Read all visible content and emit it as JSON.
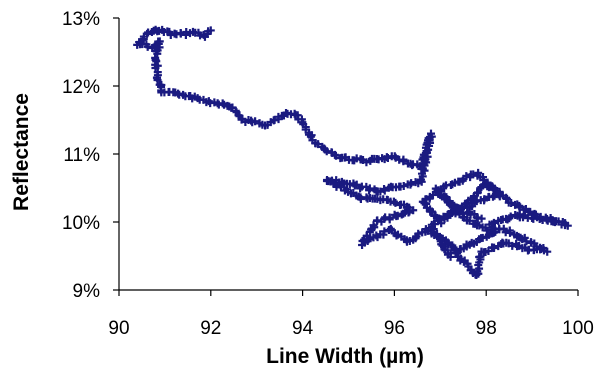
{
  "chart_data": {
    "type": "scatter",
    "xlabel": "Line Width (µm)",
    "ylabel": "Reflectance",
    "xlim": [
      90,
      100
    ],
    "ylim": [
      9,
      13
    ],
    "x_ticks": [
      "90",
      "92",
      "94",
      "96",
      "98",
      "100"
    ],
    "y_ticks": [
      "9%",
      "10%",
      "11%",
      "12%",
      "13%"
    ],
    "grid": false,
    "legend": "none",
    "marker": "plus",
    "color": "#1a1a80",
    "path_points": [
      [
        92.0,
        12.82
      ],
      [
        91.9,
        12.74
      ],
      [
        91.6,
        12.78
      ],
      [
        91.2,
        12.76
      ],
      [
        90.9,
        12.83
      ],
      [
        90.7,
        12.8
      ],
      [
        90.4,
        12.62
      ],
      [
        90.7,
        12.58
      ],
      [
        90.9,
        12.65
      ],
      [
        90.8,
        12.4
      ],
      [
        90.85,
        12.1
      ],
      [
        90.95,
        11.9
      ],
      [
        91.4,
        11.88
      ],
      [
        91.9,
        11.78
      ],
      [
        92.4,
        11.72
      ],
      [
        92.7,
        11.5
      ],
      [
        93.2,
        11.43
      ],
      [
        93.7,
        11.6
      ],
      [
        93.9,
        11.55
      ],
      [
        94.3,
        11.15
      ],
      [
        94.8,
        10.95
      ],
      [
        95.4,
        10.9
      ],
      [
        96.0,
        10.95
      ],
      [
        96.6,
        10.8
      ],
      [
        96.8,
        11.3
      ],
      [
        96.6,
        10.6
      ],
      [
        95.6,
        10.45
      ],
      [
        95.1,
        10.55
      ],
      [
        94.5,
        10.62
      ],
      [
        95.3,
        10.35
      ],
      [
        96.0,
        10.3
      ],
      [
        96.4,
        10.18
      ],
      [
        95.6,
        10.0
      ],
      [
        95.3,
        9.68
      ],
      [
        95.9,
        9.88
      ],
      [
        96.3,
        9.72
      ],
      [
        96.7,
        9.88
      ],
      [
        97.2,
        9.68
      ],
      [
        97.5,
        9.42
      ],
      [
        97.8,
        9.2
      ],
      [
        97.9,
        9.55
      ],
      [
        98.4,
        9.7
      ],
      [
        98.9,
        9.6
      ],
      [
        99.3,
        9.58
      ],
      [
        98.7,
        9.8
      ],
      [
        98.1,
        9.95
      ],
      [
        98.6,
        10.1
      ],
      [
        99.2,
        10.05
      ],
      [
        99.8,
        9.95
      ],
      [
        99.0,
        10.12
      ],
      [
        98.5,
        10.3
      ],
      [
        98.0,
        10.55
      ],
      [
        97.6,
        10.3
      ],
      [
        97.0,
        10.0
      ],
      [
        96.6,
        10.3
      ],
      [
        97.2,
        10.55
      ],
      [
        97.8,
        10.72
      ],
      [
        98.3,
        10.42
      ],
      [
        97.4,
        10.18
      ],
      [
        96.8,
        9.95
      ],
      [
        97.2,
        9.5
      ],
      [
        97.6,
        9.65
      ],
      [
        98.2,
        9.85
      ],
      [
        97.5,
        10.05
      ],
      [
        96.9,
        10.48
      ],
      [
        97.3,
        10.22
      ],
      [
        97.9,
        10.05
      ]
    ]
  }
}
